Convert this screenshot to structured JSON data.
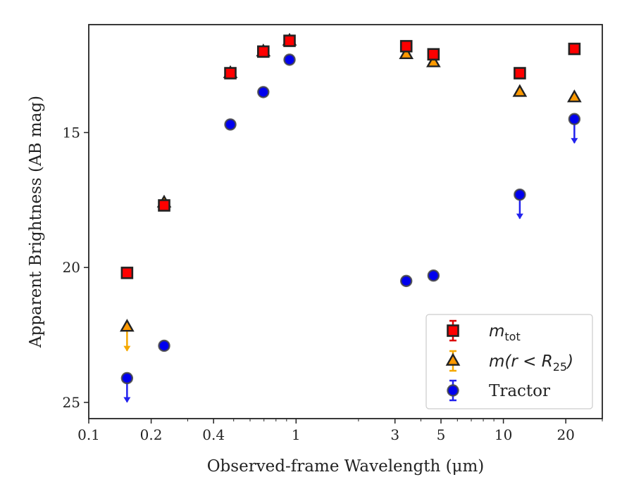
{
  "chart_data": {
    "type": "scatter",
    "title": "",
    "xlabel": "Observed-frame Wavelength (μm)",
    "ylabel": "Apparent Brightness (AB mag)",
    "xscale": "log",
    "xlim": [
      0.1,
      30
    ],
    "ylim": [
      25.6,
      11.0
    ],
    "y_inverted": true,
    "x_ticks": [
      0.1,
      0.2,
      0.4,
      1,
      3,
      5,
      10,
      20
    ],
    "x_tick_labels": [
      "0.1",
      "0.2",
      "0.4",
      "1",
      "3",
      "5",
      "10",
      "20"
    ],
    "y_ticks": [
      15,
      20,
      25
    ],
    "y_tick_labels": [
      "15",
      "20",
      "25"
    ],
    "grid": false,
    "legend_position": "lower-right",
    "series": [
      {
        "key": "mtot",
        "legend_label": "m_tot",
        "marker": "square",
        "color": "#ff0000",
        "edgecolor": "#222222",
        "errorbar_color": "#dd0000",
        "points": [
          {
            "x": 0.153,
            "y": 20.2
          },
          {
            "x": 0.231,
            "y": 17.7
          },
          {
            "x": 0.482,
            "y": 12.8
          },
          {
            "x": 0.695,
            "y": 12.0
          },
          {
            "x": 0.93,
            "y": 11.6
          },
          {
            "x": 3.4,
            "y": 11.8
          },
          {
            "x": 4.6,
            "y": 12.1
          },
          {
            "x": 12.0,
            "y": 12.8
          },
          {
            "x": 22.0,
            "y": 11.9
          }
        ]
      },
      {
        "key": "mr25",
        "legend_label": "m(r < R25)",
        "marker": "triangle",
        "color": "#ff9900",
        "edgecolor": "#222222",
        "errorbar_color": "#f5a800",
        "points": [
          {
            "x": 0.153,
            "y": 22.2,
            "upper_limit": true
          },
          {
            "x": 0.231,
            "y": 17.6
          },
          {
            "x": 0.482,
            "y": 12.8
          },
          {
            "x": 0.695,
            "y": 12.0
          },
          {
            "x": 0.93,
            "y": 11.6
          },
          {
            "x": 3.4,
            "y": 12.1
          },
          {
            "x": 4.6,
            "y": 12.4
          },
          {
            "x": 12.0,
            "y": 13.5
          },
          {
            "x": 22.0,
            "y": 13.7
          }
        ]
      },
      {
        "key": "tractor",
        "legend_label": "Tractor",
        "marker": "circle",
        "color": "#0000ee",
        "edgecolor": "#444444",
        "errorbar_color": "#2222ee",
        "points": [
          {
            "x": 0.153,
            "y": 24.1,
            "upper_limit": true
          },
          {
            "x": 0.231,
            "y": 22.9
          },
          {
            "x": 0.482,
            "y": 14.7
          },
          {
            "x": 0.695,
            "y": 13.5
          },
          {
            "x": 0.93,
            "y": 12.3
          },
          {
            "x": 3.4,
            "y": 20.5
          },
          {
            "x": 4.6,
            "y": 20.3
          },
          {
            "x": 12.0,
            "y": 17.3,
            "upper_limit": true
          },
          {
            "x": 22.0,
            "y": 14.5,
            "upper_limit": true
          }
        ]
      }
    ]
  },
  "legend": {
    "items": [
      {
        "key": "mtot",
        "label": "m",
        "sub": "tot",
        "math": true
      },
      {
        "key": "mr25",
        "label": "m(r < R",
        "sub": "25",
        "suffix": ")",
        "math": true
      },
      {
        "key": "tractor",
        "label": "Tractor",
        "math": false
      }
    ]
  }
}
